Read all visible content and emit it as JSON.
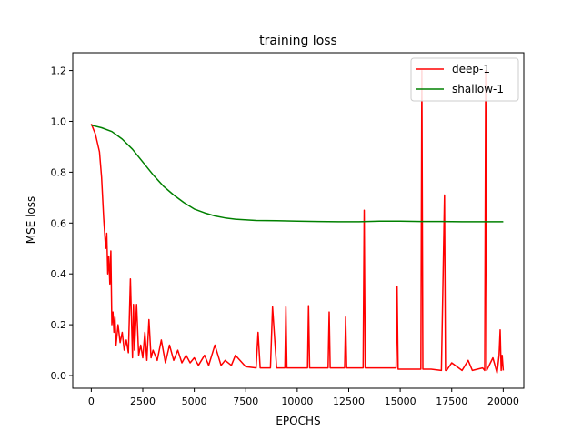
{
  "chart_data": {
    "type": "line",
    "title": "training loss",
    "xlabel": "EPOCHS",
    "ylabel": "MSE loss",
    "xlim": [
      -900,
      21000
    ],
    "ylim": [
      -0.05,
      1.27
    ],
    "xticks": [
      0,
      2500,
      5000,
      7500,
      10000,
      12500,
      15000,
      17500,
      20000
    ],
    "xtick_labels": [
      "0",
      "2500",
      "5000",
      "7500",
      "10000",
      "12500",
      "15000",
      "17500",
      "20000"
    ],
    "yticks": [
      0.0,
      0.2,
      0.4,
      0.6,
      0.8,
      1.0,
      1.2
    ],
    "ytick_labels": [
      "0.0",
      "0.2",
      "0.4",
      "0.6",
      "0.8",
      "1.0",
      "1.2"
    ],
    "grid": false,
    "legend_position": "top-right",
    "series": [
      {
        "name": "deep-1",
        "color": "#ff0000",
        "x": [
          0,
          200,
          400,
          500,
          600,
          700,
          750,
          800,
          850,
          900,
          950,
          1000,
          1050,
          1100,
          1150,
          1200,
          1300,
          1400,
          1500,
          1600,
          1700,
          1800,
          1900,
          2000,
          2050,
          2100,
          2200,
          2300,
          2400,
          2500,
          2600,
          2700,
          2800,
          2900,
          3000,
          3200,
          3400,
          3600,
          3800,
          4000,
          4200,
          4400,
          4600,
          4800,
          5000,
          5200,
          5500,
          5700,
          6000,
          6300,
          6500,
          6800,
          7000,
          7500,
          8000,
          8100,
          8200,
          8500,
          8700,
          8800,
          9000,
          9400,
          9450,
          9500,
          10000,
          10500,
          10550,
          10600,
          11000,
          11500,
          11550,
          11600,
          12000,
          12300,
          12350,
          12400,
          13000,
          13200,
          13250,
          13300,
          14000,
          14800,
          14850,
          14900,
          15500,
          16000,
          16050,
          16100,
          16500,
          17000,
          17150,
          17200,
          17250,
          17500,
          18000,
          18300,
          18500,
          19000,
          19100,
          19150,
          19200,
          19500,
          19700,
          19800,
          19850,
          19900,
          19950,
          20000
        ],
        "y": [
          0.99,
          0.95,
          0.88,
          0.78,
          0.62,
          0.5,
          0.56,
          0.4,
          0.47,
          0.36,
          0.49,
          0.2,
          0.25,
          0.17,
          0.23,
          0.12,
          0.2,
          0.13,
          0.17,
          0.1,
          0.14,
          0.09,
          0.38,
          0.07,
          0.28,
          0.1,
          0.28,
          0.08,
          0.12,
          0.07,
          0.17,
          0.06,
          0.22,
          0.07,
          0.1,
          0.06,
          0.14,
          0.05,
          0.12,
          0.06,
          0.1,
          0.05,
          0.08,
          0.05,
          0.07,
          0.04,
          0.08,
          0.04,
          0.12,
          0.04,
          0.06,
          0.04,
          0.08,
          0.035,
          0.03,
          0.17,
          0.03,
          0.03,
          0.03,
          0.27,
          0.03,
          0.03,
          0.27,
          0.03,
          0.03,
          0.03,
          0.275,
          0.03,
          0.03,
          0.03,
          0.25,
          0.03,
          0.03,
          0.03,
          0.23,
          0.03,
          0.03,
          0.03,
          0.65,
          0.03,
          0.03,
          0.03,
          0.35,
          0.025,
          0.025,
          0.025,
          1.2,
          0.025,
          0.025,
          0.02,
          0.71,
          0.02,
          0.02,
          0.05,
          0.02,
          0.06,
          0.02,
          0.03,
          0.02,
          1.2,
          0.02,
          0.07,
          0.01,
          0.08,
          0.18,
          0.02,
          0.08,
          0.02
        ]
      },
      {
        "name": "shallow-1",
        "color": "#008000",
        "x": [
          0,
          500,
          1000,
          1500,
          2000,
          2500,
          3000,
          3500,
          4000,
          4500,
          5000,
          5500,
          6000,
          6500,
          7000,
          8000,
          9000,
          10000,
          11000,
          12000,
          13000,
          14000,
          15000,
          16000,
          17000,
          18000,
          19000,
          20000
        ],
        "y": [
          0.985,
          0.975,
          0.96,
          0.93,
          0.89,
          0.84,
          0.79,
          0.745,
          0.71,
          0.68,
          0.655,
          0.64,
          0.628,
          0.62,
          0.615,
          0.61,
          0.609,
          0.607,
          0.606,
          0.605,
          0.605,
          0.607,
          0.607,
          0.606,
          0.606,
          0.605,
          0.605,
          0.605
        ]
      }
    ]
  }
}
